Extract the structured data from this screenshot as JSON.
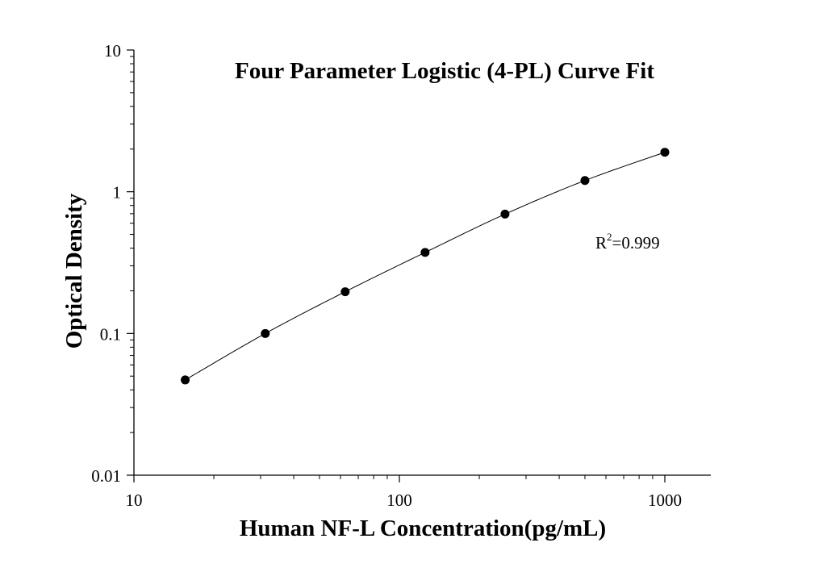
{
  "chart_data": {
    "type": "scatter",
    "title": "Four Parameter Logistic (4-PL) Curve Fit",
    "xlabel": "Human NF-L Concentration(pg/mL)",
    "ylabel": "Optical Density",
    "x_scale": "log",
    "y_scale": "log",
    "xlim": [
      10,
      1500
    ],
    "ylim": [
      0.01,
      10
    ],
    "x_ticks": [
      {
        "value": 10,
        "label": "10"
      },
      {
        "value": 100,
        "label": "100"
      },
      {
        "value": 1000,
        "label": "1000"
      }
    ],
    "y_ticks": [
      {
        "value": 0.01,
        "label": "0.01"
      },
      {
        "value": 0.1,
        "label": "0.1"
      },
      {
        "value": 1,
        "label": "1"
      },
      {
        "value": 10,
        "label": "10"
      }
    ],
    "grid": false,
    "legend": "none",
    "series": [
      {
        "x": [
          15.6,
          31.25,
          62.5,
          125,
          250,
          500,
          1000
        ],
        "y": [
          0.047,
          0.1,
          0.197,
          0.373,
          0.695,
          1.2,
          1.9
        ]
      }
    ],
    "annotation": {
      "base": "R",
      "superscript": "2",
      "rest": "=0.999"
    },
    "colors": {
      "points": "#000000",
      "curve": "#000000",
      "axes": "#000000",
      "background": "#ffffff"
    }
  }
}
